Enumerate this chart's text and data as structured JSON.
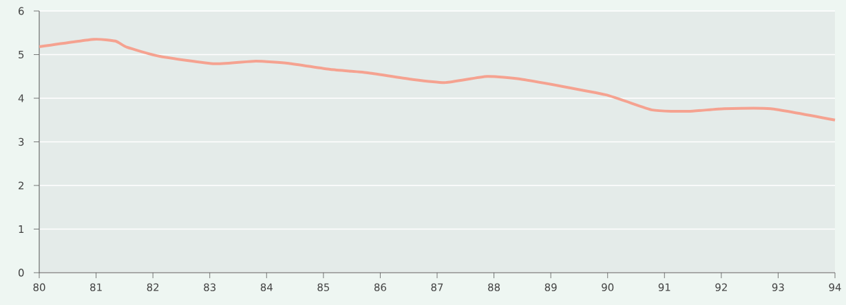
{
  "chart_data": {
    "type": "line",
    "x": [
      80,
      80.96,
      81.34,
      81.54,
      82.12,
      83.09,
      83.81,
      84.39,
      85.12,
      85.8,
      86.57,
      87.15,
      87.88,
      88.51,
      89.96,
      90.79,
      91.42,
      92.05,
      92.87,
      94
    ],
    "values": [
      5.18,
      5.35,
      5.31,
      5.17,
      4.96,
      4.79,
      4.85,
      4.8,
      4.66,
      4.58,
      4.43,
      4.36,
      4.5,
      4.43,
      4.08,
      3.73,
      3.7,
      3.76,
      3.76,
      3.5
    ],
    "color": "#f5a290",
    "xlim": [
      80,
      94
    ],
    "xticks": [
      80,
      81,
      82,
      83,
      84,
      85,
      86,
      87,
      88,
      89,
      90,
      91,
      92,
      93,
      94
    ],
    "ylim": [
      0,
      6
    ],
    "yticks": [
      0,
      1,
      2,
      3,
      4,
      5,
      6
    ],
    "grid": "y",
    "marker": "none",
    "line_style": "solid"
  }
}
